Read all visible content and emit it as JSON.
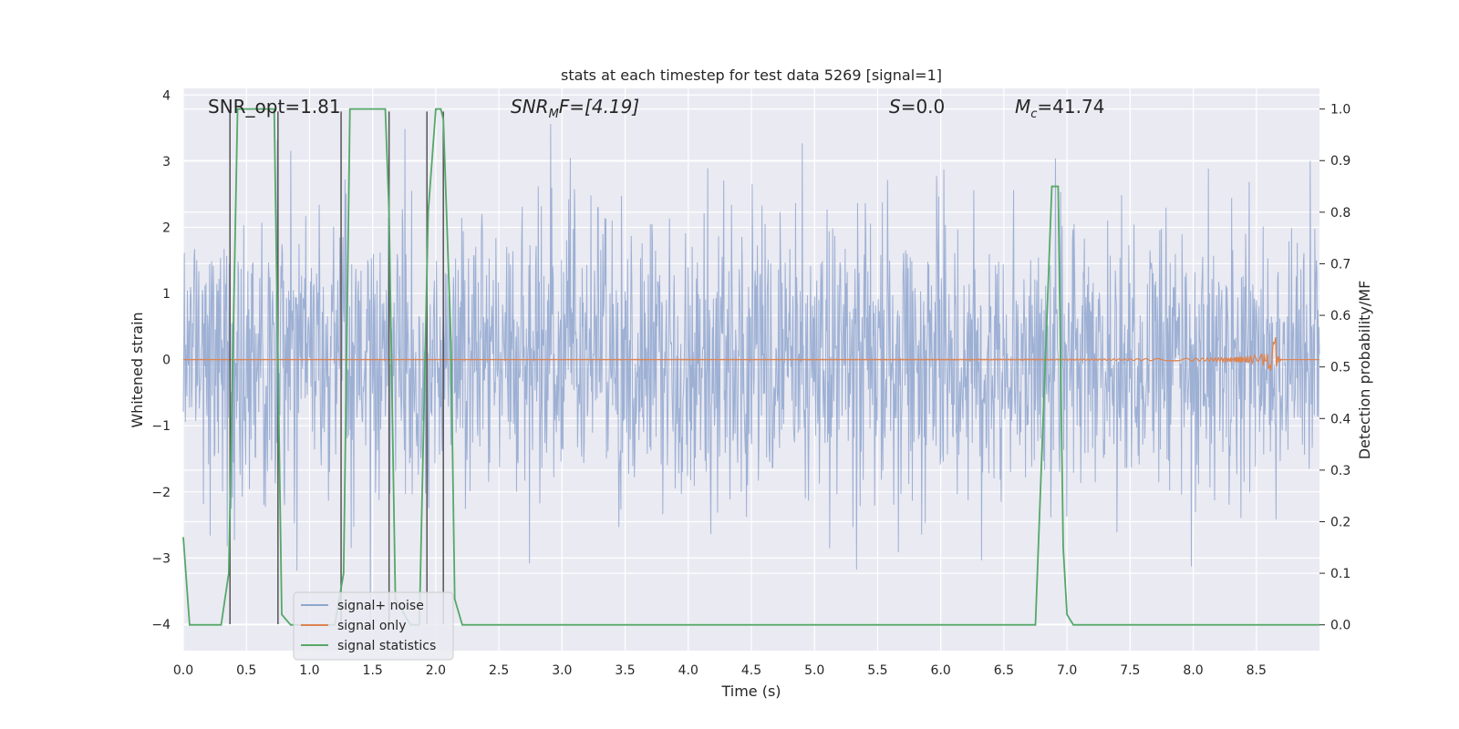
{
  "chart_data": {
    "type": "line",
    "title": "stats at each timestep for test data 5269 [signal=1]",
    "xlabel": "Time (s)",
    "ylabel_left": "Whitened strain",
    "ylabel_right": "Detection probability/MF",
    "xlim": [
      0.0,
      9.0
    ],
    "ylim_left": [
      -4.4,
      4.1
    ],
    "ylim_right": [
      -0.05,
      1.04
    ],
    "x_ticks": [
      0.0,
      0.5,
      1.0,
      1.5,
      2.0,
      2.5,
      3.0,
      3.5,
      4.0,
      4.5,
      5.0,
      5.5,
      6.0,
      6.5,
      7.0,
      7.5,
      8.0,
      8.5
    ],
    "x_tick_labels": [
      "0.0",
      "0.5",
      "1.0",
      "1.5",
      "2.0",
      "2.5",
      "3.0",
      "3.5",
      "4.0",
      "4.5",
      "5.0",
      "5.5",
      "6.0",
      "6.5",
      "7.0",
      "7.5",
      "8.0",
      "8.5"
    ],
    "y_left_ticks": [
      4,
      3,
      2,
      1,
      0,
      -1,
      -2,
      -3,
      -4
    ],
    "y_left_tick_labels": [
      "4",
      "3",
      "2",
      "1",
      "0",
      "−1",
      "−2",
      "−3",
      "−4"
    ],
    "y_right_ticks": [
      1.0,
      0.9,
      0.8,
      0.7,
      0.6,
      0.5,
      0.4,
      0.3,
      0.2,
      0.1,
      0.0
    ],
    "y_right_tick_labels": [
      "1.0",
      "0.9",
      "0.8",
      "0.7",
      "0.6",
      "0.5",
      "0.4",
      "0.3",
      "0.2",
      "0.1",
      "0.0"
    ],
    "grid": true,
    "annotations": {
      "snr_opt": "SNR_opt=1.81",
      "snr_mf_main": "SNR",
      "snr_mf_sub": "M",
      "snr_mf_rest": "F=[4.19]",
      "s_main": "S",
      "s_rest": "=0.0",
      "mc_main": "M",
      "mc_sub": "c",
      "mc_rest": "=41.74"
    },
    "series": [
      {
        "name": "signal+ noise",
        "color": "#8fa6cf",
        "kind": "noise",
        "value_range_left": [
          -4.0,
          3.8
        ]
      },
      {
        "name": "signal only",
        "color": "#dd8452",
        "kind": "chirp",
        "merger_time": 8.65,
        "peak_amplitude": 0.48
      },
      {
        "name": "signal statistics",
        "color": "#55a868",
        "x": [
          0.0,
          0.05,
          0.15,
          0.3,
          0.36,
          0.43,
          0.5,
          0.72,
          0.78,
          0.85,
          1.2,
          1.27,
          1.32,
          1.4,
          1.6,
          1.63,
          1.68,
          1.8,
          1.87,
          1.94,
          2.0,
          2.04,
          2.06,
          2.12,
          2.15,
          2.21,
          3.0,
          4.0,
          5.0,
          6.0,
          6.7,
          6.75,
          6.88,
          6.93,
          6.97,
          7.0,
          7.05,
          7.5,
          8.0,
          9.0
        ],
        "y": [
          0.17,
          0.0,
          0.0,
          0.0,
          0.1,
          1.0,
          1.0,
          1.0,
          0.02,
          0.0,
          0.0,
          0.1,
          1.0,
          1.0,
          1.0,
          0.8,
          0.05,
          0.0,
          0.0,
          0.8,
          1.0,
          1.0,
          0.98,
          0.55,
          0.05,
          0.0,
          0.0,
          0.0,
          0.0,
          0.0,
          0.0,
          0.0,
          0.85,
          0.85,
          0.15,
          0.02,
          0.0,
          0.0,
          0.0,
          0.0
        ]
      }
    ],
    "vertical_markers": {
      "color": "#555555",
      "x": [
        0.37,
        0.75,
        1.25,
        1.63,
        1.93,
        2.06
      ],
      "y_top_left": 3.75,
      "y_bottom_left": -4.0
    },
    "legend": {
      "position": "lower-left",
      "entries": [
        "signal+ noise",
        "signal only",
        "signal statistics"
      ]
    }
  }
}
